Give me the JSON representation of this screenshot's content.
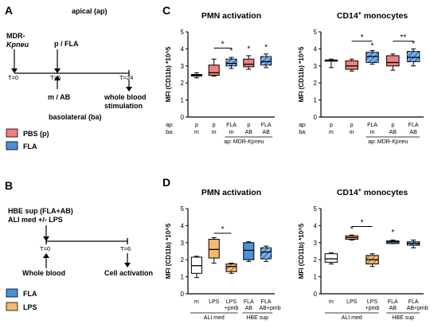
{
  "panels": {
    "A": {
      "letter": "A",
      "apical": "apical (ap)",
      "basolateral": "basolateral (ba)",
      "organism_line1": "MDR-",
      "organism_line2": "Kpneu",
      "treatment_ap": "p / FLA",
      "treatment_ba": "m / AB",
      "times": [
        "T=0",
        "T=6",
        "T=24"
      ],
      "endpoint_line1": "whole blood",
      "endpoint_line2": "stimulation",
      "legend": [
        {
          "label": "PBS (p)",
          "color": "#f08080"
        },
        {
          "label": "FLA",
          "color": "#4a90d9"
        }
      ]
    },
    "B": {
      "letter": "B",
      "top_line1": "HBE sup (FLA+AB)",
      "top_line2": "ALI med +/- LPS",
      "times": [
        "T=0",
        "T=6"
      ],
      "bottom_left": "Whole blood",
      "bottom_right": "Cell activation",
      "legend": [
        {
          "label": "FLA",
          "color": "#4a90d9"
        },
        {
          "label": "LPS",
          "color": "#f5b870"
        }
      ]
    },
    "C": {
      "letter": "C",
      "row_label_ap": "ap:",
      "row_label_ba": "ba:",
      "group_label": "ap: MDR-Kpneu"
    },
    "D": {
      "letter": "D",
      "group_ali": "ALI med",
      "group_hbe": "HBE sup"
    }
  },
  "chart_data": [
    {
      "type": "box",
      "panel": "C",
      "title": "PMN activation",
      "ylabel": "MFI (CD11b) *10^5",
      "ylim": [
        0,
        5
      ],
      "yticks": [
        0,
        1,
        2,
        3,
        4,
        5
      ],
      "categories": [
        {
          "ap": "p",
          "ba": "m",
          "color": "#ffffff",
          "hatch": false
        },
        {
          "ap": "p",
          "ba": "m",
          "color": "#f08080",
          "hatch": false
        },
        {
          "ap": "FLA",
          "ba": "m",
          "color": "#4a90d9",
          "hatch": true
        },
        {
          "ap": "p",
          "ba": "AB",
          "color": "#f08080",
          "hatch": false
        },
        {
          "ap": "FLA",
          "ba": "AB",
          "color": "#4a90d9",
          "hatch": true
        }
      ],
      "boxes": [
        {
          "min": 2.3,
          "q1": 2.4,
          "median": 2.45,
          "q3": 2.5,
          "max": 2.6
        },
        {
          "min": 2.4,
          "q1": 2.45,
          "median": 2.6,
          "q3": 3.05,
          "max": 3.4
        },
        {
          "min": 2.85,
          "q1": 3.0,
          "median": 3.15,
          "q3": 3.4,
          "max": 3.5
        },
        {
          "min": 2.8,
          "q1": 2.95,
          "median": 3.1,
          "q3": 3.4,
          "max": 3.6
        },
        {
          "min": 2.9,
          "q1": 3.05,
          "median": 3.25,
          "q3": 3.55,
          "max": 3.7
        }
      ],
      "annotations": [
        {
          "type": "bracket",
          "from": 1,
          "to": 2,
          "y": 4.05,
          "text": "*"
        },
        {
          "type": "star",
          "at": 2,
          "y": 3.75,
          "text": "*"
        },
        {
          "type": "star",
          "at": 3,
          "y": 3.85,
          "text": "*"
        },
        {
          "type": "star",
          "at": 4,
          "y": 3.95,
          "text": "*"
        }
      ],
      "underline_from": 2
    },
    {
      "type": "box",
      "panel": "C",
      "title": "CD14",
      "title_sup": "+",
      "title_rest": " monocytes",
      "ylabel": "MFI (CD11b) *10^5",
      "ylim": [
        0,
        5
      ],
      "yticks": [
        0,
        1,
        2,
        3,
        4,
        5
      ],
      "categories": [
        {
          "ap": "p",
          "ba": "m",
          "color": "#ffffff",
          "hatch": false
        },
        {
          "ap": "p",
          "ba": "m",
          "color": "#f08080",
          "hatch": false
        },
        {
          "ap": "FLA",
          "ba": "m",
          "color": "#4a90d9",
          "hatch": true
        },
        {
          "ap": "p",
          "ba": "AB",
          "color": "#f08080",
          "hatch": false
        },
        {
          "ap": "FLA",
          "ba": "AB",
          "color": "#4a90d9",
          "hatch": true
        }
      ],
      "boxes": [
        {
          "min": 2.9,
          "q1": 3.3,
          "median": 3.3,
          "q3": 3.35,
          "max": 3.4
        },
        {
          "min": 2.7,
          "q1": 2.8,
          "median": 3.0,
          "q3": 3.3,
          "max": 3.4
        },
        {
          "min": 3.1,
          "q1": 3.2,
          "median": 3.55,
          "q3": 3.8,
          "max": 3.9
        },
        {
          "min": 2.75,
          "q1": 3.0,
          "median": 3.2,
          "q3": 3.6,
          "max": 3.7
        },
        {
          "min": 3.0,
          "q1": 3.25,
          "median": 3.5,
          "q3": 3.85,
          "max": 4.0
        }
      ],
      "annotations": [
        {
          "type": "bracket",
          "from": 1,
          "to": 2,
          "y": 4.45,
          "text": "*"
        },
        {
          "type": "bracket",
          "from": 3,
          "to": 4,
          "y": 4.45,
          "text": "**"
        },
        {
          "type": "star",
          "at": 2,
          "y": 4.05,
          "text": "*"
        },
        {
          "type": "star",
          "at": 4,
          "y": 4.15,
          "text": "*"
        }
      ],
      "underline_from": 2
    },
    {
      "type": "box",
      "panel": "D",
      "title": "PMN activation",
      "ylabel": "MFI (CD11b) *10^5",
      "ylim": [
        0,
        5
      ],
      "yticks": [
        0,
        1,
        2,
        3,
        4,
        5
      ],
      "categories": [
        {
          "label": "m",
          "label2": "",
          "color": "#ffffff",
          "hatch": false
        },
        {
          "label": "LPS",
          "label2": "",
          "color": "#f5b870",
          "hatch": false
        },
        {
          "label": "LPS",
          "label2": "+pmb",
          "color": "#f5b870",
          "hatch": true
        },
        {
          "label": "FLA",
          "label2": "AB",
          "color": "#4a90d9",
          "hatch": false
        },
        {
          "label": "FLA",
          "label2": "AB+pmb",
          "color": "#4a90d9",
          "hatch": true
        }
      ],
      "boxes": [
        {
          "min": 0.95,
          "q1": 1.2,
          "median": 1.65,
          "q3": 2.15,
          "max": 2.2
        },
        {
          "min": 1.8,
          "q1": 2.1,
          "median": 2.6,
          "q3": 3.2,
          "max": 3.3
        },
        {
          "min": 1.2,
          "q1": 1.3,
          "median": 1.6,
          "q3": 1.75,
          "max": 1.8
        },
        {
          "min": 1.9,
          "q1": 2.0,
          "median": 2.55,
          "q3": 3.0,
          "max": 3.05
        },
        {
          "min": 1.9,
          "q1": 2.05,
          "median": 2.45,
          "q3": 2.7,
          "max": 2.8
        }
      ],
      "annotations": [
        {
          "type": "bracket",
          "from": 1,
          "to": 2,
          "y": 3.55,
          "text": "*"
        }
      ],
      "groups": [
        {
          "from": 0,
          "to": 2,
          "key": "ali"
        },
        {
          "from": 3,
          "to": 4,
          "key": "hbe"
        }
      ]
    },
    {
      "type": "box",
      "panel": "D",
      "title": "CD14",
      "title_sup": "+",
      "title_rest": " monocytes",
      "ylabel": "MFI (CD11b) *10^5",
      "ylim": [
        0,
        5
      ],
      "yticks": [
        0,
        1,
        2,
        3,
        4,
        5
      ],
      "categories": [
        {
          "label": "m",
          "label2": "",
          "color": "#ffffff",
          "hatch": false
        },
        {
          "label": "LPS",
          "label2": "",
          "color": "#f5b870",
          "hatch": false
        },
        {
          "label": "LPS",
          "label2": "+pmb",
          "color": "#f5b870",
          "hatch": true
        },
        {
          "label": "FLA",
          "label2": "AB",
          "color": "#4a90d9",
          "hatch": false
        },
        {
          "label": "FLA",
          "label2": "AB+pmb",
          "color": "#4a90d9",
          "hatch": true
        }
      ],
      "boxes": [
        {
          "min": 1.75,
          "q1": 1.85,
          "median": 2.05,
          "q3": 2.35,
          "max": 2.4
        },
        {
          "min": 3.15,
          "q1": 3.2,
          "median": 3.3,
          "q3": 3.4,
          "max": 3.45
        },
        {
          "min": 1.6,
          "q1": 1.75,
          "median": 2.0,
          "q3": 2.25,
          "max": 2.35
        },
        {
          "min": 2.95,
          "q1": 2.95,
          "median": 3.05,
          "q3": 3.1,
          "max": 3.15
        },
        {
          "min": 2.7,
          "q1": 2.85,
          "median": 2.95,
          "q3": 3.05,
          "max": 3.15
        }
      ],
      "annotations": [
        {
          "type": "bracket",
          "from": 1,
          "to": 2,
          "y": 3.95,
          "text": "*"
        },
        {
          "type": "star",
          "at": 1,
          "y": 3.65,
          "text": "*"
        },
        {
          "type": "star",
          "at": 3,
          "y": 3.45,
          "text": "*"
        }
      ],
      "groups": [
        {
          "from": 0,
          "to": 2,
          "key": "ali"
        },
        {
          "from": 3,
          "to": 4,
          "key": "hbe"
        }
      ]
    }
  ]
}
